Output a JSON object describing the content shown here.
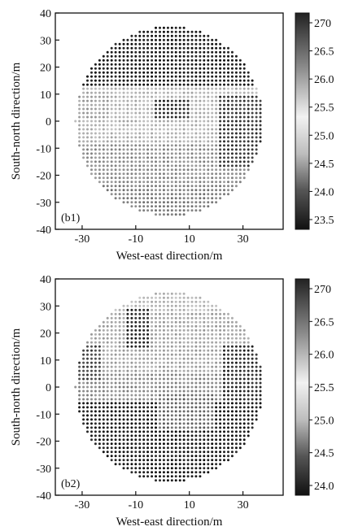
{
  "chart_data": [
    {
      "type": "scatter",
      "panel_label": "(b1)",
      "xlabel": "West-east direction/m",
      "ylabel": "South-north direction/m",
      "xlim": [
        -40,
        45
      ],
      "ylim": [
        -40,
        40
      ],
      "x_ticks": [
        "-30",
        "-10",
        "10",
        "30"
      ],
      "y_ticks": [
        "-40",
        "-30",
        "-20",
        "-10",
        "0",
        "10",
        "20",
        "30",
        "40"
      ],
      "colorbar_ticks": [
        "270",
        "26.5",
        "26.0",
        "25.5",
        "25.0",
        "24.5",
        "24.0",
        "23.5"
      ],
      "pattern": "dark-top"
    },
    {
      "type": "scatter",
      "panel_label": "(b2)",
      "xlabel": "West-east direction/m",
      "ylabel": "South-north direction/m",
      "xlim": [
        -40,
        45
      ],
      "ylim": [
        -40,
        40
      ],
      "x_ticks": [
        "-30",
        "-10",
        "10",
        "30"
      ],
      "y_ticks": [
        "-40",
        "-30",
        "-20",
        "-10",
        "0",
        "10",
        "20",
        "30",
        "40"
      ],
      "colorbar_ticks": [
        "270",
        "26.5",
        "26.0",
        "25.5",
        "25.0",
        "24.5",
        "24.0"
      ],
      "pattern": "light-top"
    }
  ]
}
